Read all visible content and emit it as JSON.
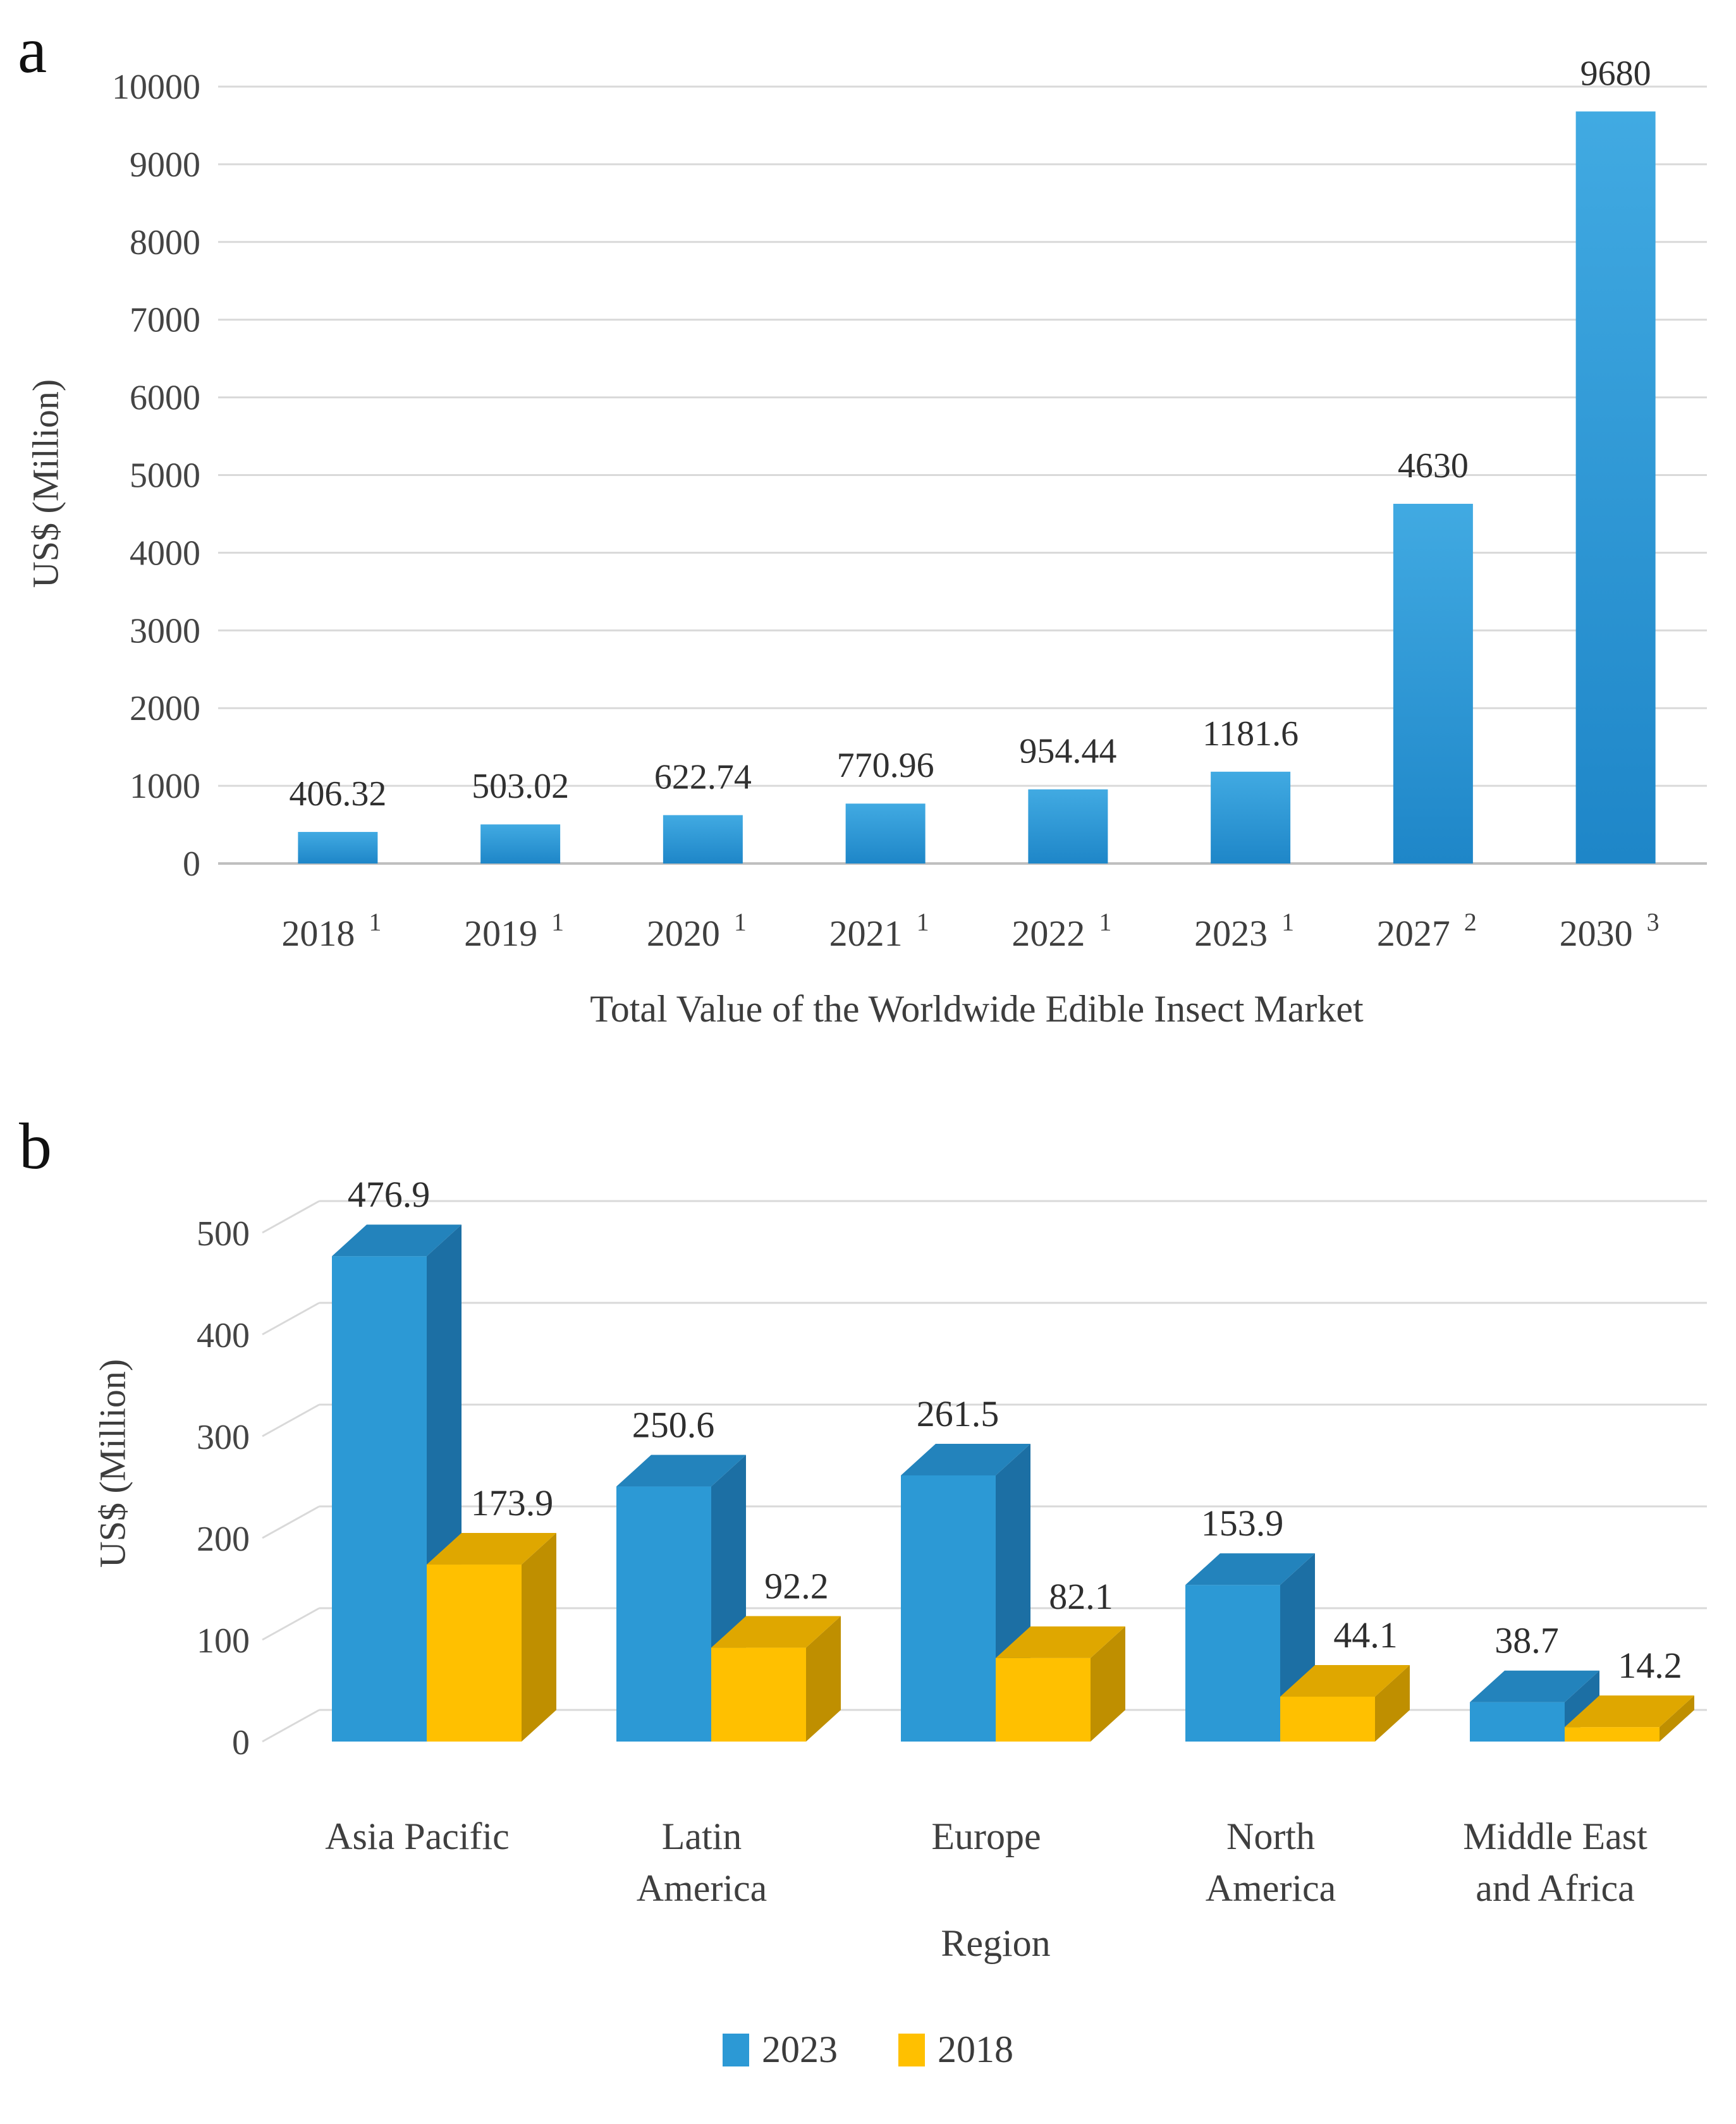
{
  "panel_labels": {
    "a": "a",
    "b": "b"
  },
  "legend_title_2023": "2023",
  "legend_title_2018": "2018",
  "chart_data": [
    {
      "type": "bar",
      "title": "Total Value of the Worldwide Edible Insect Market",
      "ylabel": "US$ (Million)",
      "ylim": [
        0,
        10000
      ],
      "ytick_step": 1000,
      "grid": true,
      "categories": [
        "2018",
        "2019",
        "2020",
        "2021",
        "2022",
        "2023",
        "2027",
        "2030"
      ],
      "category_superscripts": [
        "1",
        "1",
        "1",
        "1",
        "1",
        "1",
        "2",
        "3"
      ],
      "values": [
        406.32,
        503.02,
        622.74,
        770.96,
        954.44,
        1181.6,
        4630,
        9680
      ],
      "value_labels": [
        "406.32",
        "503.02",
        "622.74",
        "770.96",
        "954.44",
        "1181.6",
        "4630",
        "9680"
      ],
      "bar_color_top": "#41AAE2",
      "bar_color_bottom": "#1E86C8",
      "gridline_color": "#D9D9D9",
      "axisline_color": "#BFBFBF",
      "tick_color": "#444444",
      "label_color": "#303030"
    },
    {
      "type": "bar3d",
      "xlabel": "Region",
      "ylabel": "US$ (Million)",
      "ylim": [
        0,
        500
      ],
      "ytick_step": 100,
      "grid": true,
      "legend_position": "bottom",
      "categories": [
        "Asia Pacific",
        "Latin\nAmerica",
        "Europe",
        "North\nAmerica",
        "Middle East\nand Africa"
      ],
      "series": [
        {
          "name": "2023",
          "color": "#2C99D5",
          "side_color": "#1C6FA4",
          "top_color": "#2383BC",
          "values": [
            476.9,
            250.6,
            261.5,
            153.9,
            38.7
          ],
          "value_labels": [
            "476.9",
            "250.6",
            "261.5",
            "153.9",
            "38.7"
          ]
        },
        {
          "name": "2018",
          "color": "#FFC000",
          "side_color": "#BF8F00",
          "top_color": "#DFA700",
          "values": [
            173.9,
            92.2,
            82.1,
            44.1,
            14.2
          ],
          "value_labels": [
            "173.9",
            "92.2",
            "82.1",
            "44.1",
            "14.2"
          ]
        }
      ],
      "gridline_color": "#D9D9D9",
      "tick_color": "#444444",
      "label_color": "#2e2e2e"
    }
  ]
}
